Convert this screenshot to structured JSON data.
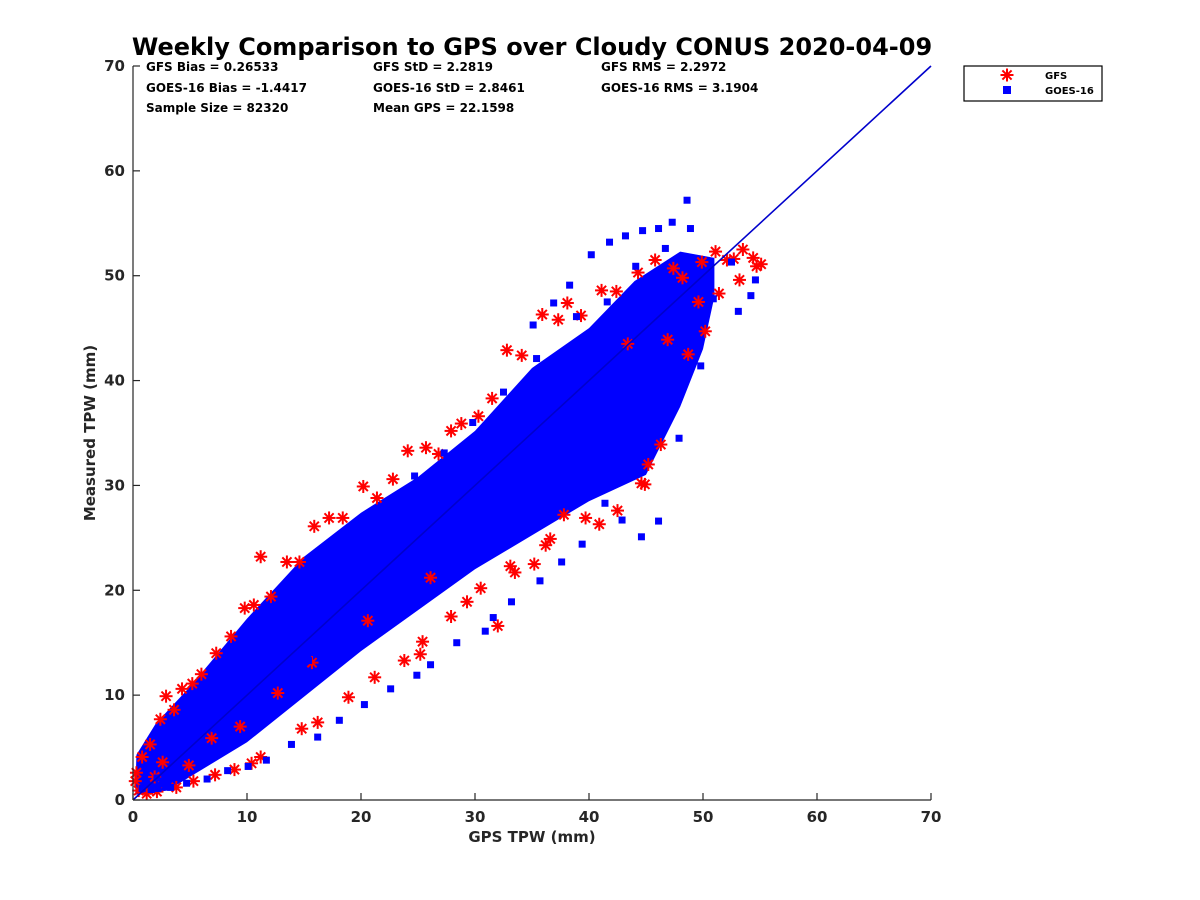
{
  "chart_data": {
    "type": "scatter",
    "title": "Weekly Comparison to GPS over Cloudy CONUS 2020-04-09",
    "xlabel": "GPS TPW (mm)",
    "ylabel": "Measured TPW (mm)",
    "xlim": [
      0,
      70
    ],
    "ylim": [
      0,
      70
    ],
    "xticks": [
      "0",
      "10",
      "20",
      "30",
      "40",
      "50",
      "60",
      "70"
    ],
    "yticks": [
      "0",
      "10",
      "20",
      "30",
      "40",
      "50",
      "60",
      "70"
    ],
    "grid": false,
    "legend_position": "outside-top-right",
    "reference_line": {
      "x": [
        0,
        70
      ],
      "y": [
        0,
        70
      ],
      "color": "#0000cc"
    },
    "stats": [
      [
        "GFS Bias = 0.26533",
        "GFS StD = 2.2819",
        "GFS RMS = 2.2972"
      ],
      [
        "GOES-16 Bias = -1.4417",
        "GOES-16 StD = 2.8461",
        "GOES-16 RMS = 3.1904"
      ],
      [
        "Sample Size = 82320",
        "Mean GPS = 22.1598",
        ""
      ]
    ],
    "series": [
      {
        "name": "GFS",
        "marker": "asterisk",
        "color": "#ff0000",
        "x": [
          0.3,
          0.8,
          1.5,
          2.4,
          2.9,
          3.6,
          4.3,
          5.2,
          6.0,
          7.3,
          8.6,
          9.8,
          10.6,
          11.2,
          12.1,
          13.5,
          14.6,
          15.9,
          17.2,
          18.4,
          20.2,
          21.4,
          22.8,
          24.1,
          25.7,
          26.8,
          27.9,
          28.8,
          30.3,
          31.5,
          32.8,
          34.1,
          35.9,
          37.3,
          38.1,
          39.3,
          41.1,
          42.4,
          44.3,
          45.8,
          47.4,
          48.2,
          49.9,
          51.1,
          52.7,
          53.5,
          54.4,
          55.1,
          53.2,
          51.4,
          49.6,
          46.9,
          46.3,
          45.2,
          44.6,
          42.5,
          40.9,
          39.7,
          37.8,
          36.2,
          35.2,
          33.5,
          32.0,
          30.5,
          29.3,
          27.9,
          25.4,
          25.2,
          23.8,
          21.2,
          18.9,
          16.2,
          14.8,
          11.2,
          10.4,
          8.9,
          7.2,
          5.3,
          3.8,
          2.1,
          1.2,
          0.5,
          0.2,
          2.6,
          6.9,
          15.7,
          44.9,
          43.4,
          20.6,
          26.1,
          36.6,
          33.1,
          48.7,
          50.2,
          9.4,
          12.7,
          4.9,
          1.9,
          54.7,
          52.1
        ],
        "y": [
          2.6,
          4.1,
          5.3,
          7.7,
          9.9,
          8.6,
          10.6,
          11.1,
          12.0,
          14.0,
          15.6,
          18.3,
          18.6,
          23.2,
          19.4,
          22.7,
          22.7,
          26.1,
          26.9,
          26.9,
          29.9,
          28.8,
          30.6,
          33.3,
          33.6,
          33.0,
          35.2,
          35.9,
          36.6,
          38.3,
          42.9,
          42.4,
          46.3,
          45.8,
          47.4,
          46.2,
          48.6,
          48.5,
          50.3,
          51.5,
          50.7,
          49.8,
          51.3,
          52.3,
          51.6,
          52.5,
          51.7,
          51.1,
          49.6,
          48.3,
          47.5,
          43.9,
          33.9,
          32.0,
          30.2,
          27.6,
          26.3,
          26.9,
          27.2,
          24.3,
          22.5,
          21.7,
          16.6,
          20.2,
          18.9,
          17.5,
          15.1,
          13.9,
          13.3,
          11.7,
          9.8,
          7.4,
          6.8,
          4.1,
          3.5,
          2.9,
          2.4,
          1.8,
          1.2,
          0.8,
          0.6,
          0.9,
          1.8,
          3.6,
          5.9,
          13.1,
          30.1,
          43.5,
          17.1,
          21.2,
          24.9,
          22.3,
          42.5,
          44.7,
          7.0,
          10.2,
          3.3,
          2.2,
          50.9,
          51.5
        ]
      },
      {
        "name": "GOES-16",
        "marker": "square",
        "color": "#0000ff",
        "x": [
          48.6,
          47.3,
          46.1,
          44.7,
          43.2,
          41.8,
          40.2,
          38.3,
          36.9,
          35.1,
          52.5,
          54.6,
          50.9,
          49.8,
          45.3,
          47.9,
          42.3,
          38.8,
          33.4,
          30.6,
          28.2,
          25.3,
          22.7,
          19.8,
          17.4,
          14.8,
          12.6,
          10.9,
          9.1,
          7.2,
          5.4,
          3.6,
          2.1,
          1.2,
          0.8,
          2.9,
          4.6,
          6.2,
          8.4,
          11.3,
          13.7,
          16.6,
          19.2,
          21.5,
          24.7,
          27.3,
          29.8,
          32.5,
          35.4,
          38.9,
          41.6,
          44.1,
          46.7,
          48.9,
          54.2,
          53.1,
          49.2,
          47.8,
          46.1,
          44.6,
          42.9,
          41.4,
          39.4,
          37.6,
          35.7,
          33.2,
          31.6,
          30.9,
          28.4,
          26.1,
          24.9,
          22.6,
          20.3,
          18.1,
          16.2,
          13.9,
          11.7,
          10.1,
          8.3,
          6.5,
          4.7,
          3.3,
          2.2,
          1.6,
          25.1,
          31.8,
          37.2,
          43.7,
          15.4,
          17.9,
          23.2,
          34.7,
          40.7,
          39.1,
          27.8
        ],
        "y": [
          57.2,
          55.1,
          54.5,
          54.3,
          53.8,
          53.2,
          52.0,
          49.1,
          47.4,
          45.3,
          51.3,
          49.6,
          47.8,
          41.4,
          37.2,
          34.5,
          33.0,
          29.4,
          26.3,
          24.3,
          23.6,
          22.5,
          20.2,
          18.0,
          16.4,
          14.2,
          11.9,
          10.3,
          8.6,
          6.8,
          4.9,
          3.3,
          2.1,
          1.5,
          1.1,
          5.6,
          7.7,
          9.9,
          12.3,
          16.1,
          18.9,
          22.1,
          24.7,
          27.6,
          30.9,
          33.1,
          36.0,
          38.9,
          42.1,
          46.1,
          47.5,
          50.9,
          52.6,
          54.5,
          48.1,
          46.6,
          44.3,
          40.2,
          26.6,
          25.1,
          26.7,
          28.3,
          24.4,
          22.7,
          20.9,
          18.9,
          17.4,
          16.1,
          15.0,
          12.9,
          11.9,
          10.6,
          9.1,
          7.6,
          6.0,
          5.3,
          3.8,
          3.2,
          2.8,
          2.0,
          1.6,
          1.2,
          1.1,
          1.0,
          26.4,
          33.8,
          39.7,
          46.4,
          13.3,
          15.7,
          21.1,
          31.8,
          37.8,
          37.1,
          28.9
        ]
      }
    ]
  }
}
